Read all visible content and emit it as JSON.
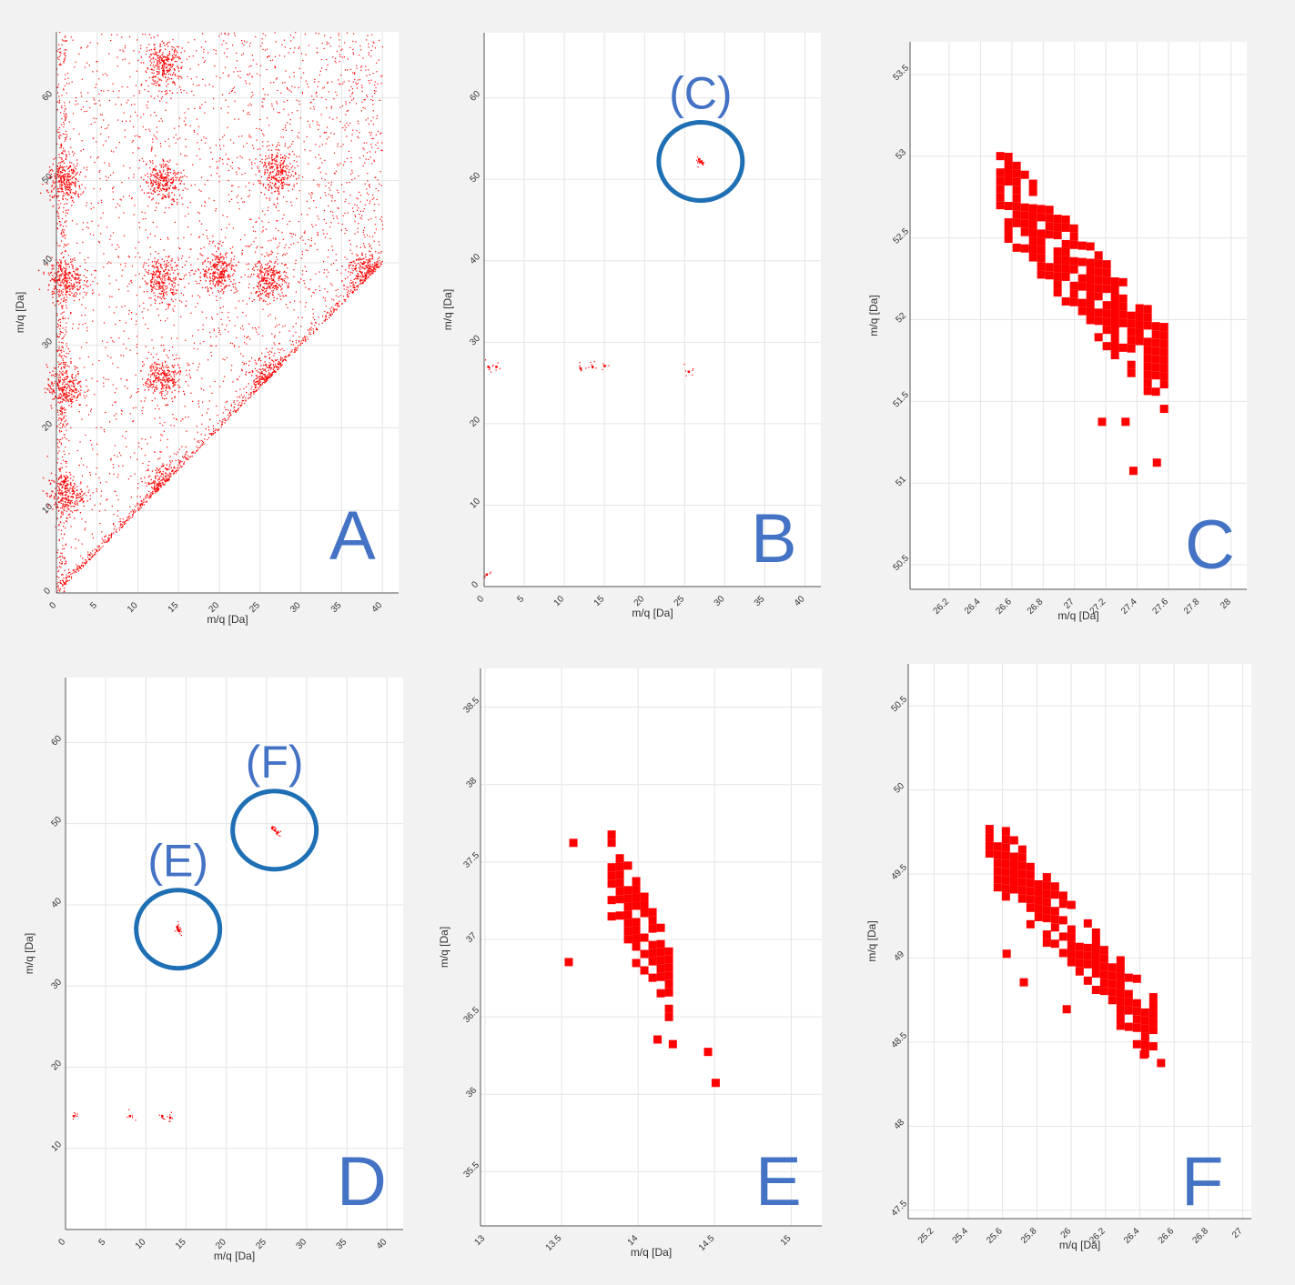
{
  "figure": {
    "background_color": "#f2f2f2",
    "plot_background": "#ffffff",
    "marker_color": "#ff0000",
    "annotation_color": "#4472c4",
    "circle_color": "#1f6fb5"
  },
  "chart_data": [
    {
      "id": "A",
      "type": "scatter",
      "panel_label": "A",
      "xlabel": "m/q [Da]",
      "ylabel": "m/q [Da]",
      "xlim": [
        0,
        42
      ],
      "ylim": [
        0,
        68
      ],
      "xticks": [
        0,
        5,
        10,
        15,
        20,
        25,
        30,
        35,
        40
      ],
      "yticks": [
        0,
        10,
        20,
        30,
        40,
        50,
        60
      ],
      "grid": true,
      "description_shape": "dense scatter with diagonal cutoff y>=x and clusters",
      "clusters": [
        {
          "x": 1,
          "y": 12
        },
        {
          "x": 1,
          "y": 25
        },
        {
          "x": 1,
          "y": 38
        },
        {
          "x": 1,
          "y": 50
        },
        {
          "x": 13,
          "y": 13
        },
        {
          "x": 13,
          "y": 26
        },
        {
          "x": 13,
          "y": 38
        },
        {
          "x": 13,
          "y": 50
        },
        {
          "x": 13,
          "y": 64
        },
        {
          "x": 20,
          "y": 39
        },
        {
          "x": 26,
          "y": 26
        },
        {
          "x": 26,
          "y": 38
        },
        {
          "x": 27,
          "y": 51
        },
        {
          "x": 38,
          "y": 39
        }
      ],
      "callouts": []
    },
    {
      "id": "B",
      "type": "scatter",
      "panel_label": "B",
      "xlabel": "m/q [Da]",
      "ylabel": "m/q [Da]",
      "xlim": [
        0,
        42
      ],
      "ylim": [
        0,
        68
      ],
      "xticks": [
        0,
        5,
        10,
        15,
        20,
        25,
        30,
        35,
        40
      ],
      "yticks": [
        0,
        10,
        20,
        30,
        40,
        50,
        60
      ],
      "grid": true,
      "points": [
        {
          "x": 27,
          "y": 52.2
        },
        {
          "x": 26.8,
          "y": 52.5
        },
        {
          "x": 27.2,
          "y": 52.0
        },
        {
          "x": 0.5,
          "y": 27
        },
        {
          "x": 1.5,
          "y": 27
        },
        {
          "x": 12,
          "y": 26.8
        },
        {
          "x": 13.5,
          "y": 27
        },
        {
          "x": 15,
          "y": 27.1
        },
        {
          "x": 25.5,
          "y": 26.4
        },
        {
          "x": 0.3,
          "y": 1.5
        }
      ],
      "callouts": [
        {
          "text": "(C)",
          "x": 27,
          "y": 52.2
        }
      ]
    },
    {
      "id": "C",
      "type": "scatter",
      "panel_label": "C",
      "xlabel": "m/q [Da]",
      "ylabel": "m/q [Da]",
      "xlim": [
        25.95,
        28.1
      ],
      "ylim": [
        50.35,
        53.7
      ],
      "xticks": [
        26.2,
        26.4,
        26.6,
        26.8,
        27,
        27.2,
        27.4,
        27.6,
        27.8,
        28
      ],
      "yticks": [
        50.5,
        51,
        51.5,
        52,
        52.5,
        53,
        53.5
      ],
      "grid": true,
      "band": {
        "x_start": 26.5,
        "x_end": 27.55,
        "y_at_start": 52.85,
        "y_at_end": 51.75,
        "width_y": 0.55
      },
      "outliers": [
        {
          "x": 27.35,
          "y": 51.1
        },
        {
          "x": 27.5,
          "y": 51.15
        },
        {
          "x": 27.3,
          "y": 51.4
        },
        {
          "x": 27.15,
          "y": 51.4
        }
      ],
      "callouts": []
    },
    {
      "id": "D",
      "type": "scatter",
      "panel_label": "D",
      "xlabel": "m/q [Da]",
      "ylabel": "m/q [Da]",
      "xlim": [
        0,
        42
      ],
      "ylim": [
        0,
        68
      ],
      "xticks": [
        0,
        5,
        10,
        15,
        20,
        25,
        30,
        35,
        40
      ],
      "yticks": [
        10,
        20,
        30,
        40,
        50,
        60
      ],
      "grid": true,
      "points": [
        {
          "x": 14,
          "y": 37
        },
        {
          "x": 13.9,
          "y": 37.3
        },
        {
          "x": 14.1,
          "y": 36.8
        },
        {
          "x": 26,
          "y": 49.2
        },
        {
          "x": 25.7,
          "y": 49.5
        },
        {
          "x": 26.3,
          "y": 48.9
        },
        {
          "x": 1,
          "y": 14
        },
        {
          "x": 8,
          "y": 14
        },
        {
          "x": 12,
          "y": 14
        },
        {
          "x": 13,
          "y": 13.8
        }
      ],
      "callouts": [
        {
          "text": "(E)",
          "x": 14,
          "y": 37
        },
        {
          "text": "(F)",
          "x": 26,
          "y": 49.2
        }
      ]
    },
    {
      "id": "E",
      "type": "scatter",
      "panel_label": "E",
      "xlabel": "m/q [Da]",
      "ylabel": "m/q [Da]",
      "xlim": [
        12.97,
        15.2
      ],
      "ylim": [
        35.15,
        38.75
      ],
      "xticks": [
        13,
        13.5,
        14,
        14.5,
        15
      ],
      "yticks": [
        35.5,
        36,
        36.5,
        37,
        37.5,
        38,
        38.5
      ],
      "grid": true,
      "band": {
        "x_start": 13.8,
        "x_end": 14.2,
        "y_at_start": 37.45,
        "y_at_end": 36.7,
        "width_y": 0.55
      },
      "outliers": [
        {
          "x": 13.55,
          "y": 37.65
        },
        {
          "x": 13.52,
          "y": 36.88
        },
        {
          "x": 14.1,
          "y": 36.38
        },
        {
          "x": 14.2,
          "y": 36.35
        },
        {
          "x": 14.43,
          "y": 36.3
        },
        {
          "x": 14.48,
          "y": 36.1
        }
      ],
      "callouts": []
    },
    {
      "id": "F",
      "type": "scatter",
      "panel_label": "F",
      "xlabel": "m/q [Da]",
      "ylabel": "m/q [Da]",
      "xlim": [
        25.05,
        27.05
      ],
      "ylim": [
        47.45,
        50.75
      ],
      "xticks": [
        25.2,
        25.4,
        25.6,
        25.8,
        26,
        26.2,
        26.4,
        26.6,
        26.8,
        27
      ],
      "yticks": [
        47.5,
        48,
        48.5,
        49,
        49.5,
        50,
        50.5
      ],
      "grid": true,
      "band": {
        "x_start": 25.5,
        "x_end": 26.5,
        "y_at_start": 49.7,
        "y_at_end": 48.55,
        "width_y": 0.4
      },
      "outliers": [
        {
          "x": 25.6,
          "y": 49.05
        },
        {
          "x": 25.7,
          "y": 48.88
        },
        {
          "x": 25.95,
          "y": 48.72
        },
        {
          "x": 26.4,
          "y": 48.45
        },
        {
          "x": 26.5,
          "y": 48.4
        }
      ],
      "callouts": []
    }
  ]
}
